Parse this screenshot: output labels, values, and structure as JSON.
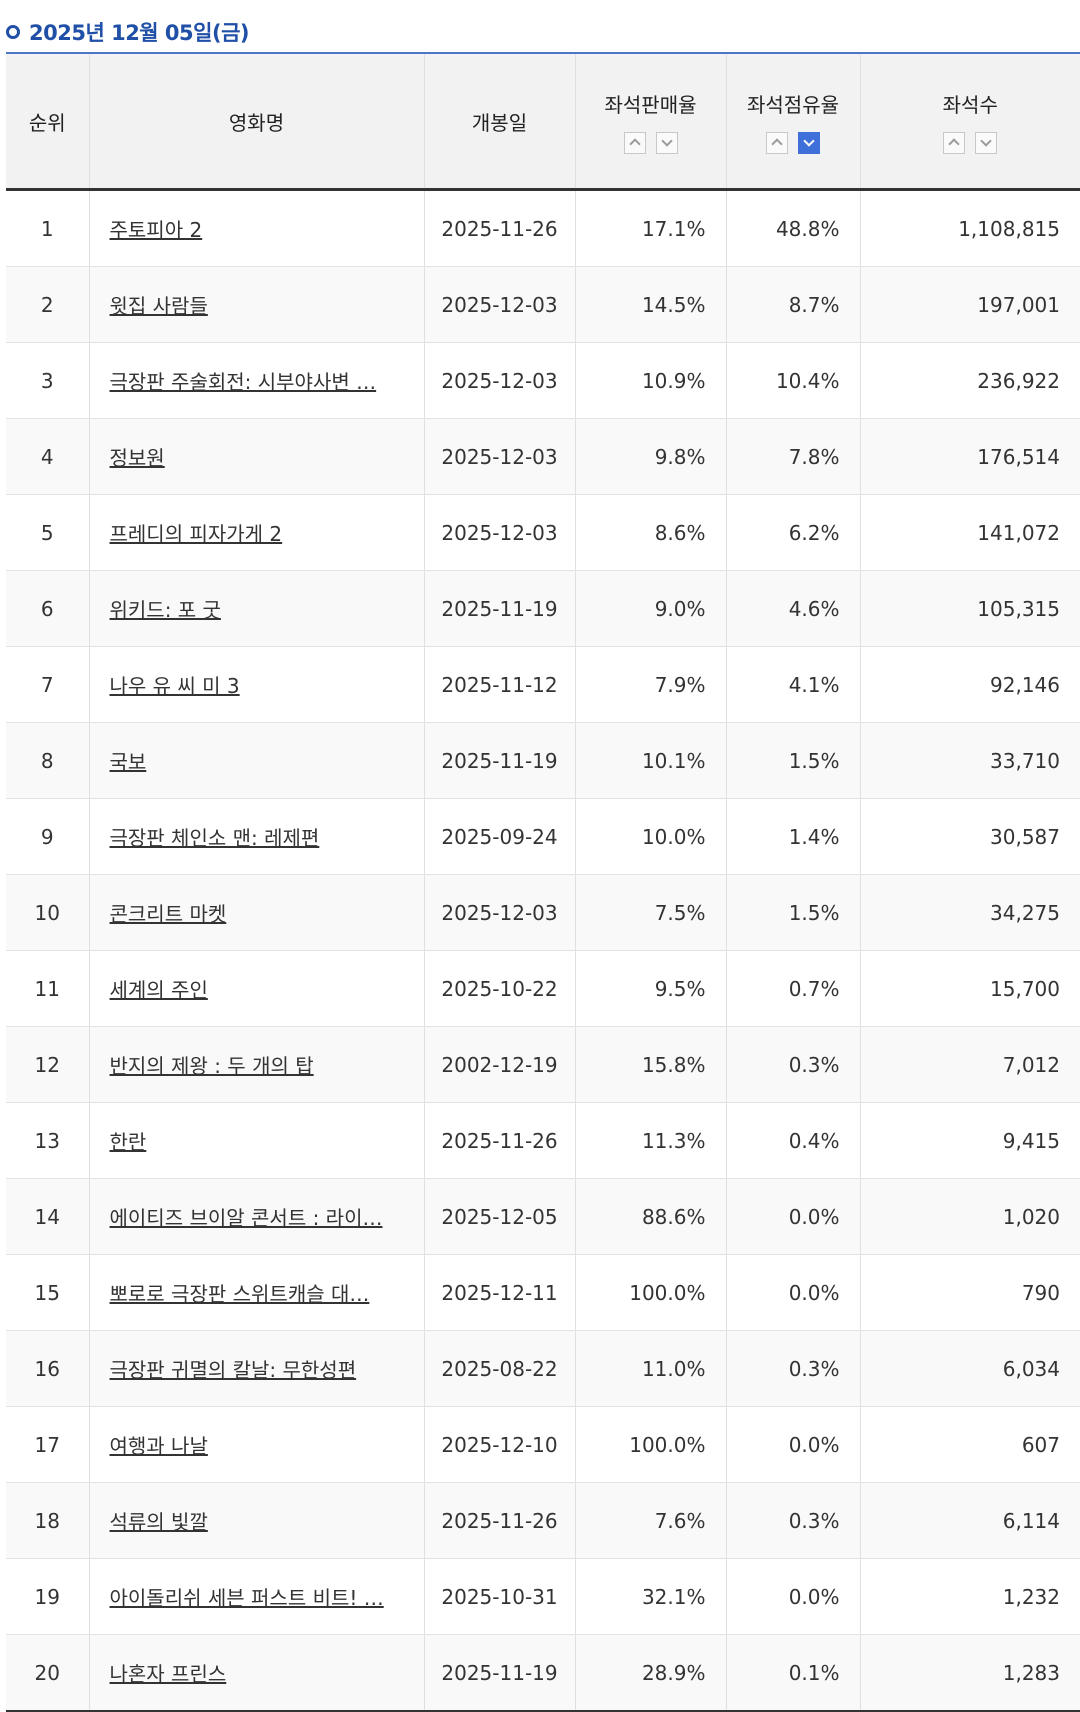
{
  "heading": {
    "date": "2025년 12월 05일(금)"
  },
  "table": {
    "headers": {
      "rank": "순위",
      "title": "영화명",
      "release": "개봉일",
      "sales": "좌석판매율",
      "share": "좌석점유율",
      "seats": "좌석수"
    },
    "sorted_column": "share",
    "sorted_direction": "down",
    "active_sort_color": "#3f6fd9",
    "rows": [
      {
        "rank": "1",
        "title": "주토피아 2",
        "release": "2025-11-26",
        "sales": "17.1%",
        "share": "48.8%",
        "seats": "1,108,815"
      },
      {
        "rank": "2",
        "title": "윗집 사람들",
        "release": "2025-12-03",
        "sales": "14.5%",
        "share": "8.7%",
        "seats": "197,001"
      },
      {
        "rank": "3",
        "title": "극장판 주술회전: 시부야사변 …",
        "release": "2025-12-03",
        "sales": "10.9%",
        "share": "10.4%",
        "seats": "236,922"
      },
      {
        "rank": "4",
        "title": "정보원",
        "release": "2025-12-03",
        "sales": "9.8%",
        "share": "7.8%",
        "seats": "176,514"
      },
      {
        "rank": "5",
        "title": "프레디의 피자가게 2",
        "release": "2025-12-03",
        "sales": "8.6%",
        "share": "6.2%",
        "seats": "141,072"
      },
      {
        "rank": "6",
        "title": "위키드: 포 굿",
        "release": "2025-11-19",
        "sales": "9.0%",
        "share": "4.6%",
        "seats": "105,315"
      },
      {
        "rank": "7",
        "title": "나우 유 씨 미 3",
        "release": "2025-11-12",
        "sales": "7.9%",
        "share": "4.1%",
        "seats": "92,146"
      },
      {
        "rank": "8",
        "title": "국보",
        "release": "2025-11-19",
        "sales": "10.1%",
        "share": "1.5%",
        "seats": "33,710"
      },
      {
        "rank": "9",
        "title": "극장판 체인소 맨: 레제편",
        "release": "2025-09-24",
        "sales": "10.0%",
        "share": "1.4%",
        "seats": "30,587"
      },
      {
        "rank": "10",
        "title": "콘크리트 마켓",
        "release": "2025-12-03",
        "sales": "7.5%",
        "share": "1.5%",
        "seats": "34,275"
      },
      {
        "rank": "11",
        "title": "세계의 주인",
        "release": "2025-10-22",
        "sales": "9.5%",
        "share": "0.7%",
        "seats": "15,700"
      },
      {
        "rank": "12",
        "title": "반지의 제왕 : 두 개의 탑",
        "release": "2002-12-19",
        "sales": "15.8%",
        "share": "0.3%",
        "seats": "7,012"
      },
      {
        "rank": "13",
        "title": "한란",
        "release": "2025-11-26",
        "sales": "11.3%",
        "share": "0.4%",
        "seats": "9,415"
      },
      {
        "rank": "14",
        "title": "에이티즈 브이알 콘서트 : 라이…",
        "release": "2025-12-05",
        "sales": "88.6%",
        "share": "0.0%",
        "seats": "1,020"
      },
      {
        "rank": "15",
        "title": "뽀로로 극장판 스위트캐슬 대…",
        "release": "2025-12-11",
        "sales": "100.0%",
        "share": "0.0%",
        "seats": "790"
      },
      {
        "rank": "16",
        "title": "극장판 귀멸의 칼날: 무한성편",
        "release": "2025-08-22",
        "sales": "11.0%",
        "share": "0.3%",
        "seats": "6,034"
      },
      {
        "rank": "17",
        "title": "여행과 나날",
        "release": "2025-12-10",
        "sales": "100.0%",
        "share": "0.0%",
        "seats": "607"
      },
      {
        "rank": "18",
        "title": "석류의 빛깔",
        "release": "2025-11-26",
        "sales": "7.6%",
        "share": "0.3%",
        "seats": "6,114"
      },
      {
        "rank": "19",
        "title": "아이돌리쉬 세븐 퍼스트 비트! …",
        "release": "2025-10-31",
        "sales": "32.1%",
        "share": "0.0%",
        "seats": "1,232"
      },
      {
        "rank": "20",
        "title": "나혼자 프린스",
        "release": "2025-11-19",
        "sales": "28.9%",
        "share": "0.1%",
        "seats": "1,283"
      }
    ]
  }
}
